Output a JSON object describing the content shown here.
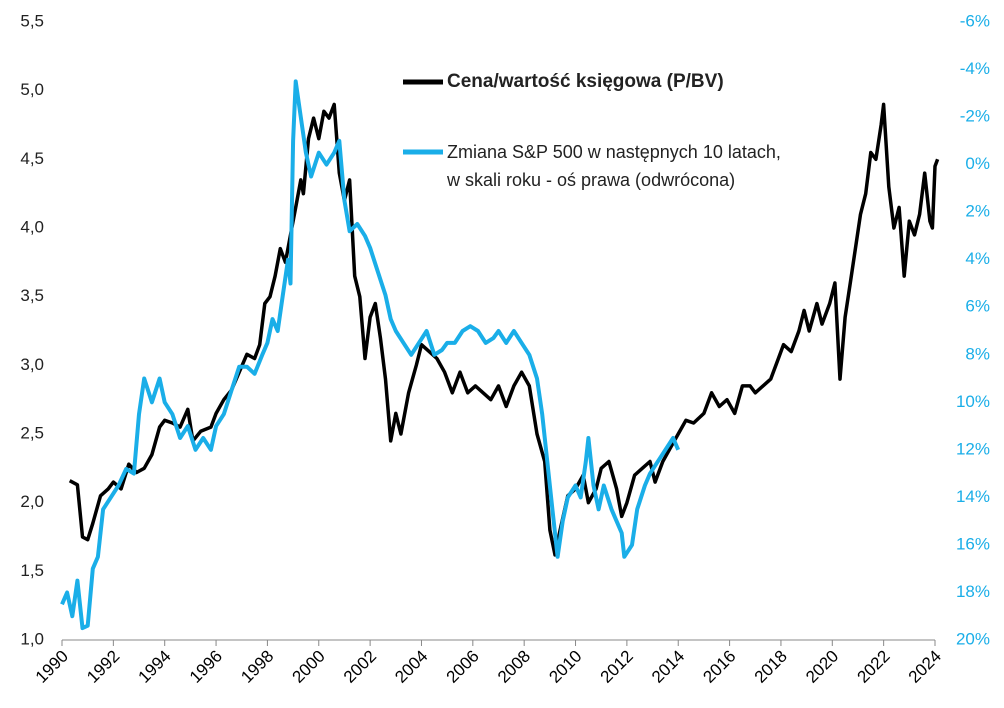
{
  "chart_data": {
    "type": "line",
    "series": [
      {
        "name": "Cena/wartość księgowa (P/BV)",
        "color": "#000000",
        "axis": "y",
        "x": [
          1990.3,
          1990.6,
          1990.8,
          1991.0,
          1991.2,
          1991.5,
          1991.8,
          1992.0,
          1992.3,
          1992.6,
          1992.9,
          1993.2,
          1993.5,
          1993.8,
          1994.0,
          1994.3,
          1994.6,
          1994.9,
          1995.1,
          1995.4,
          1995.8,
          1996.0,
          1996.3,
          1996.6,
          1996.9,
          1997.2,
          1997.5,
          1997.7,
          1997.9,
          1998.1,
          1998.3,
          1998.5,
          1998.7,
          1998.9,
          1999.1,
          1999.3,
          1999.4,
          1999.6,
          1999.8,
          2000.0,
          2000.2,
          2000.4,
          2000.6,
          2000.8,
          2001.0,
          2001.2,
          2001.4,
          2001.6,
          2001.8,
          2002.0,
          2002.2,
          2002.4,
          2002.6,
          2002.8,
          2003.0,
          2003.2,
          2003.5,
          2003.8,
          2004.0,
          2004.3,
          2004.6,
          2004.9,
          2005.2,
          2005.5,
          2005.8,
          2006.1,
          2006.4,
          2006.7,
          2007.0,
          2007.3,
          2007.6,
          2007.9,
          2008.2,
          2008.5,
          2008.8,
          2009.0,
          2009.2,
          2009.4,
          2009.7,
          2010.0,
          2010.3,
          2010.5,
          2010.8,
          2011.0,
          2011.3,
          2011.6,
          2011.8,
          2012.0,
          2012.3,
          2012.6,
          2012.9,
          2013.1,
          2013.4,
          2013.7,
          2014.0,
          2014.3,
          2014.6,
          2015.0,
          2015.3,
          2015.6,
          2015.9,
          2016.2,
          2016.5,
          2016.8,
          2017.0,
          2017.3,
          2017.6,
          2017.9,
          2018.1,
          2018.4,
          2018.7,
          2018.9,
          2019.1,
          2019.4,
          2019.6,
          2019.9,
          2020.1,
          2020.3,
          2020.5,
          2020.7,
          2020.9,
          2021.1,
          2021.3,
          2021.5,
          2021.7,
          2021.9,
          2022.0,
          2022.2,
          2022.4,
          2022.6,
          2022.8,
          2023.0,
          2023.2,
          2023.4,
          2023.6,
          2023.8,
          2023.9,
          2024.0,
          2024.1
        ],
        "values": [
          2.16,
          2.13,
          1.75,
          1.73,
          1.85,
          2.05,
          2.1,
          2.15,
          2.1,
          2.28,
          2.22,
          2.25,
          2.35,
          2.55,
          2.6,
          2.58,
          2.55,
          2.68,
          2.45,
          2.52,
          2.55,
          2.65,
          2.75,
          2.82,
          2.95,
          3.08,
          3.05,
          3.15,
          3.45,
          3.5,
          3.65,
          3.85,
          3.75,
          3.95,
          4.15,
          4.35,
          4.25,
          4.65,
          4.8,
          4.65,
          4.85,
          4.8,
          4.9,
          4.4,
          4.2,
          4.35,
          3.65,
          3.5,
          3.05,
          3.35,
          3.45,
          3.2,
          2.9,
          2.45,
          2.65,
          2.5,
          2.8,
          3.0,
          3.15,
          3.1,
          3.05,
          2.95,
          2.8,
          2.95,
          2.8,
          2.85,
          2.8,
          2.75,
          2.85,
          2.7,
          2.85,
          2.95,
          2.85,
          2.5,
          2.3,
          1.8,
          1.62,
          1.8,
          2.05,
          2.1,
          2.2,
          2.0,
          2.1,
          2.25,
          2.3,
          2.1,
          1.9,
          2.0,
          2.2,
          2.25,
          2.3,
          2.15,
          2.3,
          2.4,
          2.5,
          2.6,
          2.58,
          2.65,
          2.8,
          2.7,
          2.75,
          2.65,
          2.85,
          2.85,
          2.8,
          2.85,
          2.9,
          3.05,
          3.15,
          3.1,
          3.25,
          3.4,
          3.25,
          3.45,
          3.3,
          3.45,
          3.6,
          2.9,
          3.35,
          3.6,
          3.85,
          4.1,
          4.25,
          4.55,
          4.5,
          4.75,
          4.9,
          4.3,
          4.0,
          4.15,
          3.65,
          4.05,
          3.95,
          4.1,
          4.4,
          4.05,
          4.0,
          4.45,
          4.5
        ]
      },
      {
        "name": "Zmiana S&P 500 w następnych 10 latach,\nw skali roku - oś prawa (odwrócona)",
        "color": "#1aaee8",
        "axis": "y2",
        "x": [
          1990.0,
          1990.2,
          1990.4,
          1990.6,
          1990.8,
          1991.0,
          1991.2,
          1991.4,
          1991.6,
          1991.9,
          1992.2,
          1992.5,
          1992.8,
          1993.0,
          1993.2,
          1993.5,
          1993.8,
          1994.0,
          1994.3,
          1994.6,
          1994.9,
          1995.2,
          1995.5,
          1995.8,
          1996.0,
          1996.3,
          1996.6,
          1996.9,
          1997.2,
          1997.5,
          1997.8,
          1998.0,
          1998.2,
          1998.4,
          1998.6,
          1998.8,
          1998.9,
          1999.0,
          1999.1,
          1999.3,
          1999.5,
          1999.7,
          2000.0,
          2000.3,
          2000.6,
          2000.8,
          2001.0,
          2001.2,
          2001.5,
          2001.8,
          2002.0,
          2002.3,
          2002.6,
          2002.8,
          2003.0,
          2003.3,
          2003.6,
          2003.9,
          2004.2,
          2004.5,
          2004.8,
          2005.0,
          2005.3,
          2005.6,
          2005.9,
          2006.2,
          2006.5,
          2006.8,
          2007.0,
          2007.3,
          2007.6,
          2007.9,
          2008.2,
          2008.5,
          2008.7,
          2008.9,
          2009.1,
          2009.3,
          2009.5,
          2009.7,
          2010.0,
          2010.2,
          2010.4,
          2010.5,
          2010.7,
          2010.9,
          2011.1,
          2011.4,
          2011.6,
          2011.8,
          2011.9,
          2012.2,
          2012.4,
          2012.7,
          2012.9,
          2013.2,
          2013.5,
          2013.8,
          2014.0
        ],
        "values": [
          18.5,
          18.0,
          19.0,
          17.5,
          19.5,
          19.4,
          17.0,
          16.5,
          14.5,
          14.0,
          13.5,
          12.8,
          13.0,
          10.5,
          9.0,
          10.0,
          9.0,
          10.0,
          10.5,
          11.5,
          11.0,
          12.0,
          11.5,
          12.0,
          11.0,
          10.5,
          9.5,
          8.5,
          8.5,
          8.8,
          8.0,
          7.5,
          6.5,
          7.0,
          5.5,
          4.0,
          5.0,
          -1.0,
          -3.5,
          -2.0,
          -0.5,
          0.5,
          -0.5,
          0.0,
          -0.5,
          -1.0,
          1.5,
          2.8,
          2.5,
          3.0,
          3.5,
          4.5,
          5.5,
          6.5,
          7.0,
          7.5,
          8.0,
          7.5,
          7.0,
          8.0,
          7.8,
          7.5,
          7.5,
          7.0,
          6.8,
          7.0,
          7.5,
          7.3,
          7.0,
          7.5,
          7.0,
          7.5,
          8.0,
          9.0,
          10.5,
          12.5,
          14.5,
          16.5,
          15.0,
          14.0,
          13.5,
          14.0,
          12.5,
          11.5,
          13.5,
          14.5,
          13.5,
          14.5,
          15.0,
          15.5,
          16.5,
          16.0,
          14.5,
          13.5,
          13.0,
          12.5,
          12.0,
          11.5,
          12.0
        ]
      }
    ],
    "xlim": [
      1990,
      2024
    ],
    "xticks": [
      1990,
      1992,
      1994,
      1996,
      1998,
      2000,
      2002,
      2004,
      2006,
      2008,
      2010,
      2012,
      2014,
      2016,
      2018,
      2020,
      2022,
      2024
    ],
    "ylim": [
      1.0,
      5.5
    ],
    "yticks": [
      {
        "value": 1.0,
        "label": "1,0"
      },
      {
        "value": 1.5,
        "label": "1,5"
      },
      {
        "value": 2.0,
        "label": "2,0"
      },
      {
        "value": 2.5,
        "label": "2,5"
      },
      {
        "value": 3.0,
        "label": "3,0"
      },
      {
        "value": 3.5,
        "label": "3,5"
      },
      {
        "value": 4.0,
        "label": "4,0"
      },
      {
        "value": 4.5,
        "label": "4,5"
      },
      {
        "value": 5.0,
        "label": "5,0"
      },
      {
        "value": 5.5,
        "label": "5,5"
      }
    ],
    "y2lim": [
      -6,
      20
    ],
    "y2_inverted": true,
    "y2ticks": [
      {
        "value": -6,
        "label": "-6%"
      },
      {
        "value": -4,
        "label": "-4%"
      },
      {
        "value": -2,
        "label": "-2%"
      },
      {
        "value": 0,
        "label": "0%"
      },
      {
        "value": 2,
        "label": "2%"
      },
      {
        "value": 4,
        "label": "4%"
      },
      {
        "value": 6,
        "label": "6%"
      },
      {
        "value": 8,
        "label": "8%"
      },
      {
        "value": 10,
        "label": "10%"
      },
      {
        "value": 12,
        "label": "12%"
      },
      {
        "value": 14,
        "label": "14%"
      },
      {
        "value": 16,
        "label": "16%"
      },
      {
        "value": 18,
        "label": "18%"
      },
      {
        "value": 20,
        "label": "20%"
      }
    ],
    "y2_tick_color": "#1aaee8",
    "grid": false
  }
}
